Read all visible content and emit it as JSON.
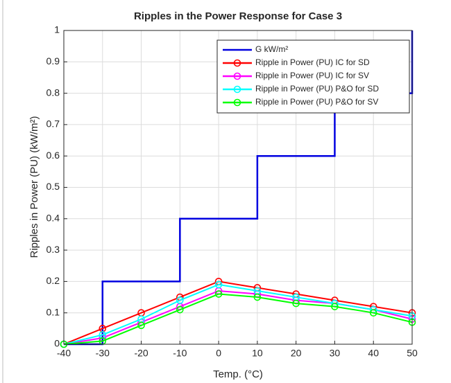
{
  "chart_data": {
    "type": "line",
    "title": "Ripples in the Power Response for Case 3",
    "xlabel": "Temp. (°C)",
    "ylabel": "Ripples in Power (PU) (kW/m²)",
    "xlim": [
      -40,
      50
    ],
    "ylim": [
      0,
      1
    ],
    "xticks": [
      -40,
      -30,
      -20,
      -10,
      0,
      10,
      20,
      30,
      40,
      50
    ],
    "yticks": [
      0,
      0.1,
      0.2,
      0.3,
      0.4,
      0.5,
      0.6,
      0.7,
      0.8,
      0.9,
      1
    ],
    "grid": true,
    "legend": "northeast",
    "series": [
      {
        "name": "G kW/m²",
        "color": "#0000e0",
        "marker": false,
        "x": [
          -40,
          -30,
          -30,
          -10,
          -10,
          10,
          10,
          30,
          30,
          50,
          50
        ],
        "values": [
          0,
          0,
          0.2,
          0.2,
          0.4,
          0.4,
          0.6,
          0.6,
          0.8,
          0.8,
          1
        ]
      },
      {
        "name": "Ripple in Power (PU) IC for SD",
        "color": "#ff0000",
        "marker": true,
        "x": [
          -40,
          -30,
          -20,
          -10,
          0,
          10,
          20,
          30,
          40,
          50
        ],
        "values": [
          0,
          0.05,
          0.1,
          0.15,
          0.2,
          0.18,
          0.16,
          0.14,
          0.12,
          0.1
        ]
      },
      {
        "name": "Ripple in Power (PU) IC for SV",
        "color": "#ff00ff",
        "marker": true,
        "x": [
          -40,
          -30,
          -20,
          -10,
          0,
          10,
          20,
          30,
          40,
          50
        ],
        "values": [
          0,
          0.02,
          0.07,
          0.12,
          0.17,
          0.16,
          0.14,
          0.13,
          0.11,
          0.08
        ]
      },
      {
        "name": "Ripple in Power (PU) P&O for SD",
        "color": "#00ffff",
        "marker": true,
        "x": [
          -40,
          -30,
          -20,
          -10,
          0,
          10,
          20,
          30,
          40,
          50
        ],
        "values": [
          0,
          0.03,
          0.08,
          0.14,
          0.19,
          0.17,
          0.15,
          0.13,
          0.11,
          0.09
        ]
      },
      {
        "name": "Ripple in Power (PU) P&O for SV",
        "color": "#00ff00",
        "marker": true,
        "x": [
          -40,
          -30,
          -20,
          -10,
          0,
          10,
          20,
          30,
          40,
          50
        ],
        "values": [
          0,
          0.01,
          0.06,
          0.11,
          0.16,
          0.15,
          0.13,
          0.12,
          0.1,
          0.07
        ]
      }
    ]
  }
}
